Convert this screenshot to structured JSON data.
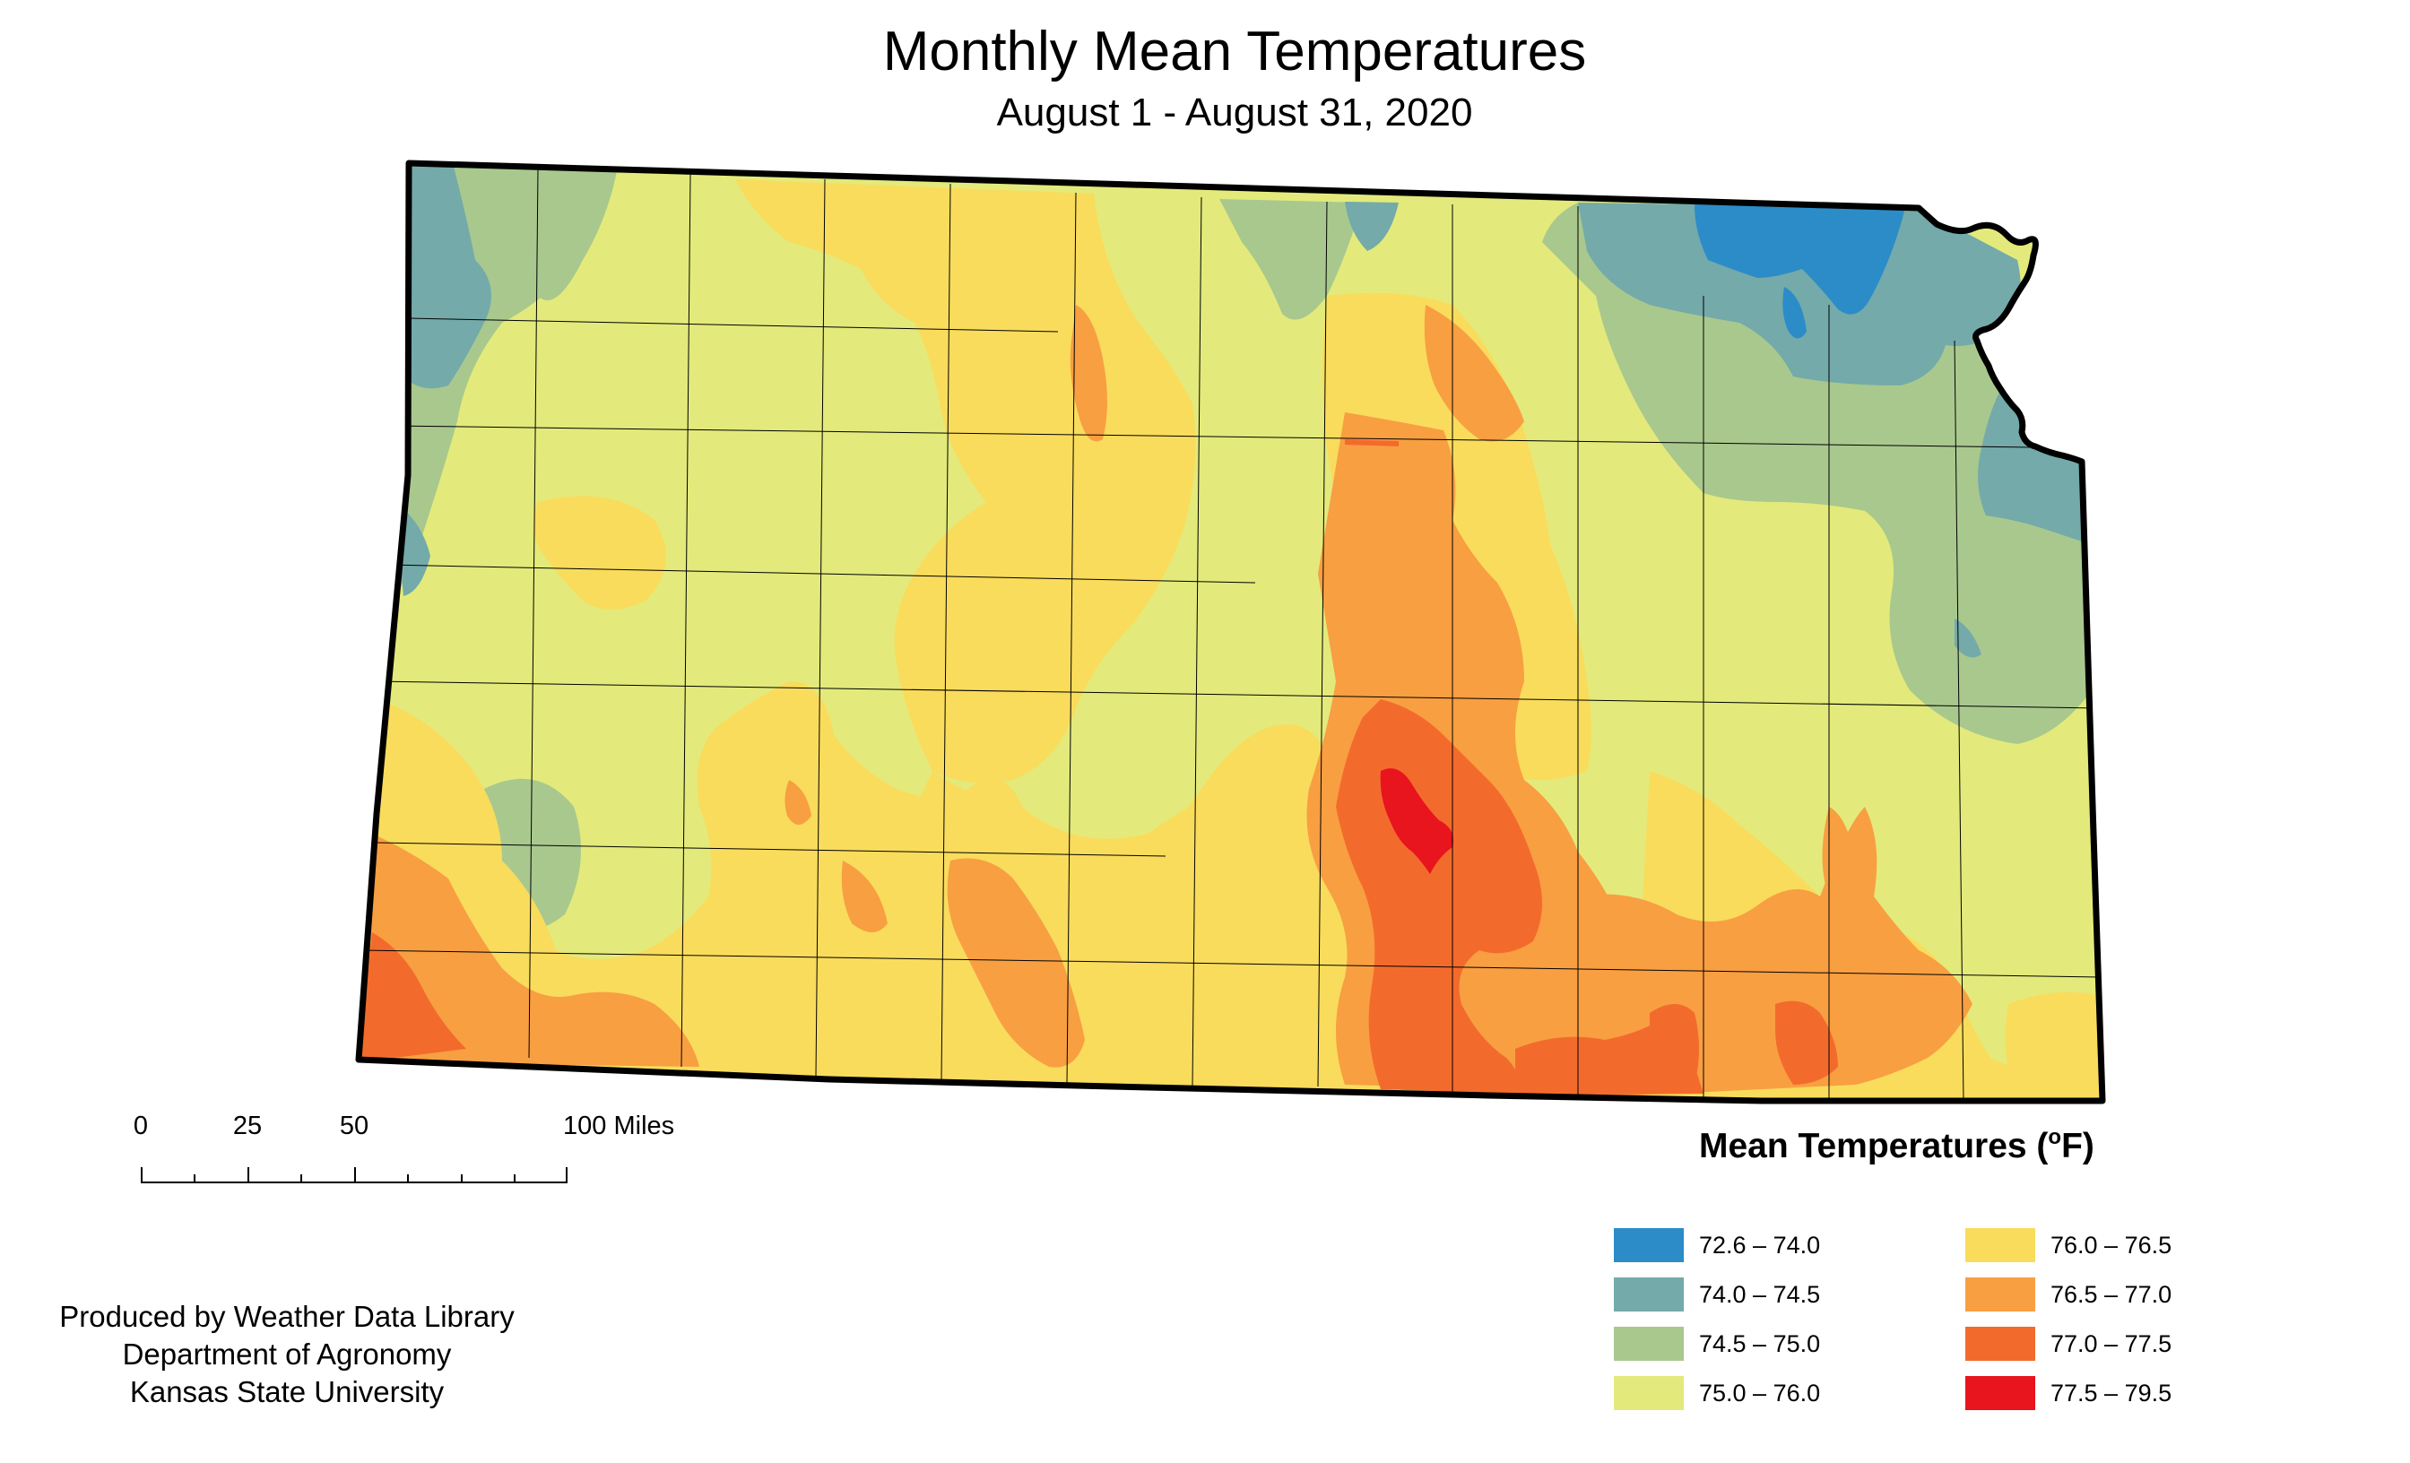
{
  "title": "Monthly Mean Temperatures",
  "subtitle": "August 1 - August 31, 2020",
  "scale_bar": {
    "labels": [
      "0",
      "25",
      "50",
      "100 Miles"
    ]
  },
  "credit": {
    "line1": "Produced by Weather Data Library",
    "line2": "Department of Agronomy",
    "line3": "Kansas State University"
  },
  "legend": {
    "title": "Mean Temperatures (",
    "unit_degree": "o",
    "unit_suffix": "F)",
    "items": [
      {
        "label": "72.6 – 74.0",
        "color": "#2b8cc8"
      },
      {
        "label": "74.0 – 74.5",
        "color": "#74aaa9"
      },
      {
        "label": "74.5 – 75.0",
        "color": "#a9c88e"
      },
      {
        "label": "75.0 – 76.0",
        "color": "#e3ea7b"
      },
      {
        "label": "76.0 – 76.5",
        "color": "#f9dc5c"
      },
      {
        "label": "76.5 – 77.0",
        "color": "#f89f42"
      },
      {
        "label": "77.0 – 77.5",
        "color": "#f36b2c"
      },
      {
        "label": "77.5 – 79.5",
        "color": "#e8141e"
      }
    ]
  }
}
